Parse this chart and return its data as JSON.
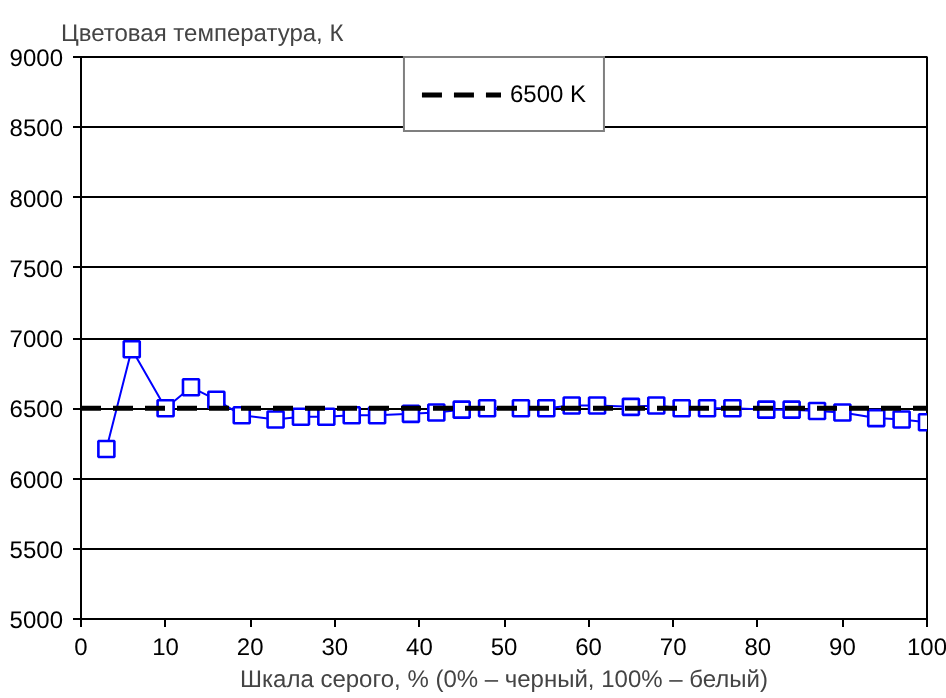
{
  "chart_data": {
    "type": "line",
    "ylabel": "Цветовая температура, К",
    "xlabel": "Шкала серого, % (0% – черный, 100% – белый)",
    "x": [
      3,
      6,
      10,
      13,
      16,
      19,
      23,
      26,
      29,
      32,
      35,
      39,
      42,
      45,
      48,
      52,
      55,
      58,
      61,
      65,
      68,
      71,
      74,
      77,
      81,
      84,
      87,
      90,
      94,
      97,
      100
    ],
    "series": [
      {
        "color": "#0000ff",
        "values": [
          6210,
          6920,
          6500,
          6650,
          6560,
          6450,
          6420,
          6440,
          6440,
          6450,
          6450,
          6460,
          6470,
          6490,
          6500,
          6500,
          6500,
          6520,
          6520,
          6510,
          6520,
          6500,
          6500,
          6500,
          6490,
          6490,
          6480,
          6470,
          6430,
          6420,
          6400
        ]
      }
    ],
    "ref_lines": [
      {
        "axis": "y",
        "value": 6500,
        "label": "6500 K",
        "color": "#000000",
        "line_style": "dashed"
      }
    ],
    "xlim": [
      0,
      100
    ],
    "xticks": [
      0,
      10,
      20,
      30,
      40,
      50,
      60,
      70,
      80,
      90,
      100
    ],
    "ylim": [
      5000,
      9000
    ],
    "yticks": [
      5000,
      5500,
      6000,
      6500,
      7000,
      7500,
      8000,
      8500,
      9000
    ],
    "grid": "y",
    "legend": "top",
    "marker": "square",
    "line_style": "solid"
  }
}
